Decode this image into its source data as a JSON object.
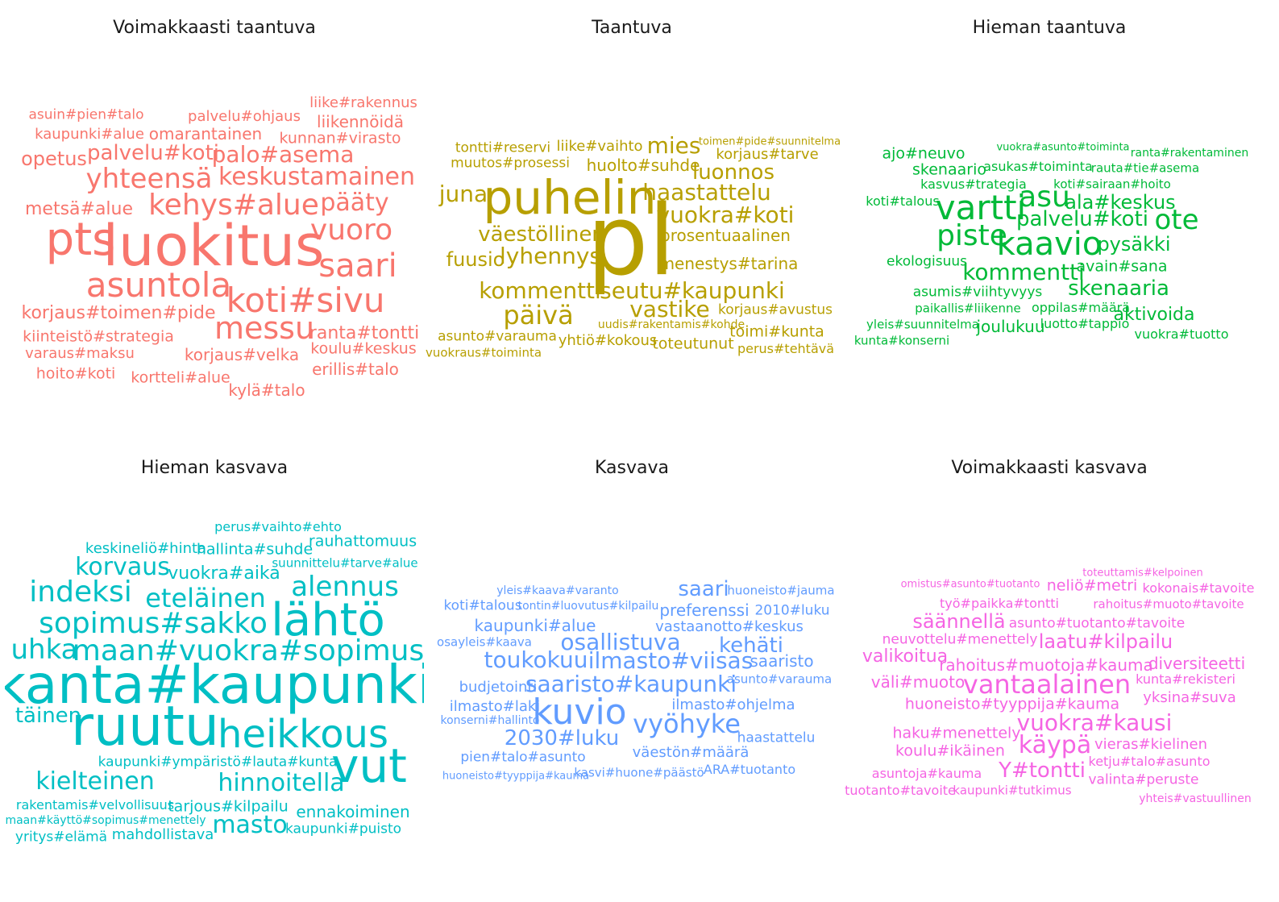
{
  "chart_data": {
    "type": "wordcloud",
    "panels": [
      {
        "title": "Voimakkaasti taantuva",
        "color": "#f8766d",
        "words": [
          [
            "luokitus",
            70,
            265,
            305
          ],
          [
            "pts",
            56,
            100,
            298
          ],
          [
            "asuntola",
            42,
            197,
            354
          ],
          [
            "koti#sivu",
            42,
            379,
            373
          ],
          [
            "saari",
            40,
            444,
            330
          ],
          [
            "messu",
            38,
            328,
            407
          ],
          [
            "kehys#alue",
            36,
            290,
            255
          ],
          [
            "vuoro",
            36,
            436,
            286
          ],
          [
            "yhteensä",
            34,
            185,
            222
          ],
          [
            "keskustamainen",
            30,
            393,
            220
          ],
          [
            "pääty",
            30,
            440,
            252
          ],
          [
            "palo#asema",
            28,
            351,
            192
          ],
          [
            "palvelu#koti",
            26,
            190,
            190
          ],
          [
            "opetus",
            24,
            67,
            197
          ],
          [
            "korjaus#toimen#pide",
            22,
            147,
            389
          ],
          [
            "ranta#tontti",
            22,
            452,
            414
          ],
          [
            "metsä#alue",
            22,
            98,
            260
          ],
          [
            "omarantainen",
            20,
            255,
            166
          ],
          [
            "korjaus#velka",
            20,
            300,
            440
          ],
          [
            "liikennöidä",
            20,
            447,
            151
          ],
          [
            "erillis#talo",
            20,
            441,
            458
          ],
          [
            "kiinteistö#strategia",
            19,
            122,
            418
          ],
          [
            "kunnan#virasto",
            19,
            422,
            172
          ],
          [
            "hoito#koti",
            19,
            94,
            464
          ],
          [
            "koulu#keskus",
            19,
            451,
            433
          ],
          [
            "kortteli#alue",
            19,
            224,
            469
          ],
          [
            "kylä#talo",
            20,
            331,
            484
          ],
          [
            "kaupunki#alue",
            18,
            111,
            167
          ],
          [
            "liike#rakennus",
            18,
            451,
            128
          ],
          [
            "varaus#maksu",
            18,
            99,
            439
          ],
          [
            "palvelu#ohjaus",
            18,
            303,
            145
          ],
          [
            "asuin#pien#talo",
            17,
            107,
            143
          ]
        ]
      },
      {
        "title": "Taantuva",
        "color": "#b79f00",
        "words": [
          [
            "pl",
            120,
            783,
            300
          ],
          [
            "puhelin",
            58,
            707,
            245
          ],
          [
            "kommentti",
            28,
            670,
            361
          ],
          [
            "seutu#kaupunki",
            28,
            859,
            361
          ],
          [
            "päivä",
            32,
            668,
            391
          ],
          [
            "vastike",
            28,
            831,
            384
          ],
          [
            "väestöllinen",
            26,
            672,
            291
          ],
          [
            "lyhennys",
            28,
            683,
            318
          ],
          [
            "haastattelu",
            28,
            877,
            239
          ],
          [
            "luonnos",
            26,
            910,
            214
          ],
          [
            "vuokra#koti",
            28,
            900,
            267
          ],
          [
            "mies",
            28,
            836,
            181
          ],
          [
            "juna",
            28,
            575,
            241
          ],
          [
            "fuusio",
            24,
            590,
            322
          ],
          [
            "menestys#tarina",
            20,
            904,
            327
          ],
          [
            "prosentuaalinen",
            20,
            900,
            292
          ],
          [
            "korjaus#tarve",
            18,
            952,
            192
          ],
          [
            "huolto#suhde",
            20,
            798,
            205
          ],
          [
            "liike#vaihto",
            18,
            744,
            182
          ],
          [
            "tontti#reservi",
            17,
            624,
            184
          ],
          [
            "muutos#prosessi",
            17,
            633,
            203
          ],
          [
            "toimi#kunta",
            19,
            964,
            412
          ],
          [
            "toteutunut",
            19,
            860,
            427
          ],
          [
            "yhtiö#kokous",
            18,
            754,
            423
          ],
          [
            "korjaus#avustus",
            17,
            962,
            385
          ],
          [
            "asunto#varauma",
            17,
            617,
            418
          ],
          [
            "perus#tehtävä",
            16,
            975,
            433
          ],
          [
            "vuokraus#toiminta",
            15,
            600,
            438
          ],
          [
            "uudis#rakentamis#kohde",
            14,
            833,
            403
          ],
          [
            "toimen#pide#suunnitelma",
            13,
            955,
            176
          ]
        ]
      },
      {
        "title": "Hieman taantuva",
        "color": "#00ba38",
        "words": [
          [
            "vartti",
            42,
            1217,
            258
          ],
          [
            "kaavio",
            40,
            1302,
            303
          ],
          [
            "asu",
            36,
            1296,
            245
          ],
          [
            "piste",
            36,
            1206,
            293
          ],
          [
            "ote",
            34,
            1460,
            273
          ],
          [
            "kommentti",
            28,
            1270,
            338
          ],
          [
            "skenaaria",
            26,
            1388,
            358
          ],
          [
            "palvelu#koti",
            26,
            1343,
            272
          ],
          [
            "ala#keskus",
            24,
            1390,
            251
          ],
          [
            "pysäkki",
            24,
            1407,
            303
          ],
          [
            "aktivoida",
            22,
            1432,
            391
          ],
          [
            "joulukuu",
            20,
            1254,
            405
          ],
          [
            "avain#sana",
            19,
            1392,
            331
          ],
          [
            "skenaario",
            19,
            1178,
            211
          ],
          [
            "ajo#neuvo",
            19,
            1146,
            191
          ],
          [
            "ekologisuus",
            17,
            1150,
            325
          ],
          [
            "asumis#viihtyvyys",
            17,
            1213,
            363
          ],
          [
            "oppilas#määrä",
            16,
            1341,
            382
          ],
          [
            "luotto#tappio",
            16,
            1346,
            402
          ],
          [
            "koti#sairaan#hoito",
            15,
            1380,
            229
          ],
          [
            "kasvus#trategia",
            16,
            1208,
            229
          ],
          [
            "asukas#toiminta",
            16,
            1288,
            207
          ],
          [
            "rauta#tie#asema",
            15,
            1421,
            209
          ],
          [
            "koti#talous",
            16,
            1120,
            250
          ],
          [
            "paikallis#liikenne",
            15,
            1201,
            383
          ],
          [
            "yleis#suunnitelma",
            15,
            1145,
            403
          ],
          [
            "vuokra#tuotto",
            16,
            1466,
            415
          ],
          [
            "kunta#konserni",
            15,
            1119,
            423
          ],
          [
            "ranta#rakentaminen",
            14,
            1476,
            190
          ],
          [
            "vuokra#asunto#toiminta",
            13,
            1319,
            183
          ]
        ]
      },
      {
        "title": "Hieman kasvava",
        "color": "#00bfc4",
        "words": [
          [
            "kanta#kaupunki",
            66,
            265,
            850
          ],
          [
            "ruutu",
            68,
            180,
            902
          ],
          [
            "lähtö",
            56,
            407,
            770
          ],
          [
            "heikkous",
            48,
            376,
            911
          ],
          [
            "vut",
            58,
            458,
            950
          ],
          [
            "sopimus#sakko",
            36,
            190,
            774
          ],
          [
            "maan#vuokra#sopimus",
            36,
            308,
            808
          ],
          [
            "indeksi",
            36,
            100,
            735
          ],
          [
            "alennus",
            34,
            428,
            728
          ],
          [
            "eteläinen",
            32,
            255,
            742
          ],
          [
            "korvaus",
            30,
            152,
            704
          ],
          [
            "uhka",
            34,
            55,
            806
          ],
          [
            "hinnoitella",
            30,
            349,
            972
          ],
          [
            "kielteinen",
            30,
            118,
            970
          ],
          [
            "masto",
            30,
            310,
            1024
          ],
          [
            "täinen",
            26,
            60,
            888
          ],
          [
            "vuokra#aika",
            22,
            278,
            712
          ],
          [
            "hallinta#suhde",
            19,
            316,
            682
          ],
          [
            "rauhattomuus",
            19,
            450,
            672
          ],
          [
            "ennakoiminen",
            20,
            438,
            1007
          ],
          [
            "tarjous#kilpailu",
            19,
            283,
            1001
          ],
          [
            "keskineliö#hinta",
            18,
            181,
            681
          ],
          [
            "kaupunki#ympäristö#lauta#kunta",
            17,
            270,
            946
          ],
          [
            "rakentamis#velvollisuus",
            16,
            118,
            999
          ],
          [
            "mahdollistava",
            18,
            202,
            1036
          ],
          [
            "kaupunki#puisto",
            17,
            426,
            1029
          ],
          [
            "yritys#elämä",
            17,
            76,
            1039
          ],
          [
            "maan#käyttö#sopimus#menettely",
            14,
            131,
            1018
          ],
          [
            "perus#vaihto#ehto",
            16,
            345,
            654
          ],
          [
            "suunnittelu#tarve#alue",
            15,
            428,
            699
          ]
        ]
      },
      {
        "title": "Kasvava",
        "color": "#619cff",
        "words": [
          [
            "kuvio",
            44,
            719,
            884
          ],
          [
            "saaristo#kaupunki",
            28,
            783,
            849
          ],
          [
            "ilmasto#viisas",
            28,
            832,
            820
          ],
          [
            "vyöhyke",
            32,
            852,
            898
          ],
          [
            "osallistuva",
            28,
            770,
            797
          ],
          [
            "toukokuu",
            28,
            665,
            819
          ],
          [
            "kehäti",
            26,
            932,
            801
          ],
          [
            "2030#luku",
            26,
            697,
            916
          ],
          [
            "saari",
            26,
            873,
            731
          ],
          [
            "kaupunki#alue",
            20,
            664,
            776
          ],
          [
            "saaristo",
            20,
            970,
            820
          ],
          [
            "preferenssi",
            20,
            874,
            757
          ],
          [
            "vastaanotto#keskus",
            18,
            905,
            778
          ],
          [
            "ilmasto#ohjelma",
            18,
            910,
            875
          ],
          [
            "väestön#määrä",
            18,
            857,
            934
          ],
          [
            "budjetointi",
            18,
            618,
            853
          ],
          [
            "ilmasto#laki",
            18,
            614,
            877
          ],
          [
            "pien#talo#asunto",
            17,
            649,
            940
          ],
          [
            "haastattelu",
            17,
            963,
            916
          ],
          [
            "ARA#tuotanto",
            16,
            930,
            955
          ],
          [
            "koti#talous",
            17,
            599,
            752
          ],
          [
            "2010#luku",
            17,
            983,
            758
          ],
          [
            "huoneisto#jauma",
            15,
            969,
            733
          ],
          [
            "asunto#varauma",
            15,
            967,
            843
          ],
          [
            "kasvi#huone#päästö",
            15,
            793,
            959
          ],
          [
            "huoneisto#tyyppija#kauma",
            13,
            640,
            963
          ],
          [
            "osayleis#kaava",
            15,
            601,
            797
          ],
          [
            "konserni#hallinto",
            14,
            608,
            894
          ],
          [
            "yleis#kaava#varanto",
            14,
            692,
            733
          ],
          [
            "tontin#luovutus#kilpailu",
            14,
            730,
            752
          ]
        ]
      },
      {
        "title": "Voimakkaasti kasvava",
        "color": "#f564e3",
        "words": [
          [
            "vantaalainen",
            32,
            1299,
            849
          ],
          [
            "käypä",
            30,
            1309,
            925
          ],
          [
            "vuokra#kausi",
            28,
            1358,
            897
          ],
          [
            "Y#tontti",
            26,
            1293,
            956
          ],
          [
            "laatu#kilpailu",
            24,
            1372,
            796
          ],
          [
            "säännellä",
            24,
            1190,
            771
          ],
          [
            "valikoitua",
            22,
            1123,
            815
          ],
          [
            "väli#muoto",
            20,
            1139,
            846
          ],
          [
            "rahoitus#muotoja#kauma",
            20,
            1298,
            825
          ],
          [
            "diversiteetti",
            20,
            1485,
            823
          ],
          [
            "huoneisto#tyyppija#kauma",
            19,
            1256,
            874
          ],
          [
            "asunto#tuotanto#tavoite",
            17,
            1361,
            774
          ],
          [
            "haku#menettely",
            19,
            1187,
            910
          ],
          [
            "koulu#ikäinen",
            19,
            1179,
            932
          ],
          [
            "neliö#metri",
            19,
            1355,
            727
          ],
          [
            "yksina#suva",
            18,
            1476,
            866
          ],
          [
            "vieras#kielinen",
            18,
            1428,
            924
          ],
          [
            "neuvottelu#menettely",
            17,
            1191,
            794
          ],
          [
            "työ#paikka#tontti",
            16,
            1240,
            749
          ],
          [
            "kunta#rekisteri",
            16,
            1471,
            843
          ],
          [
            "kokonais#tavoite",
            16,
            1487,
            730
          ],
          [
            "rahoitus#muoto#tavoite",
            15,
            1450,
            750
          ],
          [
            "valinta#peruste",
            17,
            1419,
            968
          ],
          [
            "asuntoja#kauma",
            16,
            1150,
            960
          ],
          [
            "ketju#talo#asunto",
            16,
            1426,
            945
          ],
          [
            "tuotanto#tavoite",
            16,
            1117,
            981
          ],
          [
            "kaupunki#tutkimus",
            15,
            1256,
            981
          ],
          [
            "yhteis#vastuullinen",
            14,
            1483,
            991
          ],
          [
            "omistus#asunto#tuotanto",
            13,
            1204,
            725
          ],
          [
            "toteuttamis#kelpoinen",
            13,
            1418,
            711
          ]
        ]
      }
    ]
  }
}
